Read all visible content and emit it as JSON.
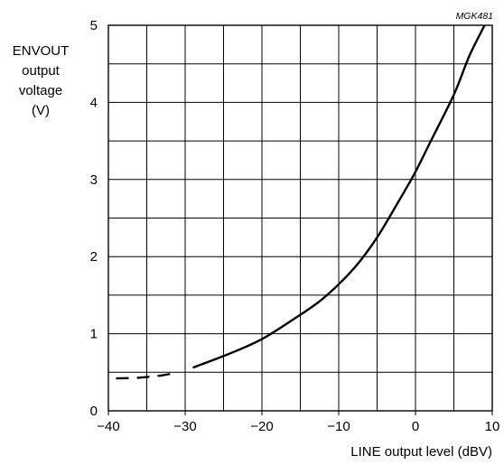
{
  "chart_data": {
    "type": "line",
    "reference": "MGK481",
    "ylabel_lines": [
      "ENVOUT",
      "output",
      "voltage",
      "(V)"
    ],
    "xlabel": "LINE output level (dBV)",
    "xlim": [
      -40,
      10
    ],
    "ylim": [
      0,
      5
    ],
    "x_ticks": [
      -40,
      -30,
      -20,
      -10,
      0,
      10
    ],
    "x_tick_labels": [
      "−40",
      "−30",
      "−20",
      "−10",
      "0",
      "10"
    ],
    "y_ticks": [
      0,
      1,
      2,
      3,
      4,
      5
    ],
    "y_tick_labels": [
      "0",
      "1",
      "2",
      "3",
      "4",
      "5"
    ],
    "grid": true,
    "series": [
      {
        "style": "dashed",
        "color": "#000000",
        "x": [
          -39,
          -36,
          -33,
          -31
        ],
        "y": [
          0.42,
          0.43,
          0.46,
          0.5
        ]
      },
      {
        "style": "solid",
        "color": "#000000",
        "x": [
          -29,
          -24,
          -20,
          -16,
          -12,
          -8,
          -5,
          -2,
          0,
          2,
          5,
          7,
          9
        ],
        "y": [
          0.56,
          0.75,
          0.93,
          1.18,
          1.46,
          1.85,
          2.25,
          2.75,
          3.1,
          3.5,
          4.1,
          4.6,
          5.0
        ]
      }
    ]
  }
}
